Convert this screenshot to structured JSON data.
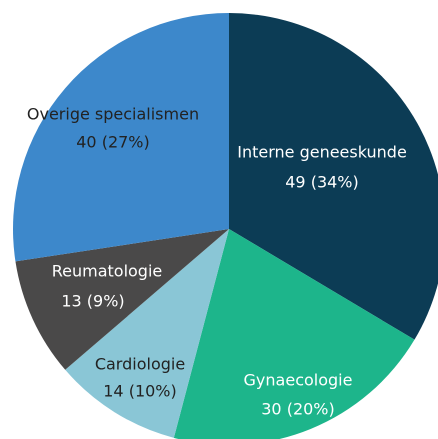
{
  "chart_data": {
    "type": "pie",
    "categories": [
      "Interne geneeskunde",
      "Gynaecologie",
      "Cardiologie",
      "Reumatologie",
      "Overige specialismen"
    ],
    "values": [
      49,
      30,
      14,
      13,
      40
    ],
    "value_labels": [
      "49 (34%)",
      "30 (20%)",
      "14 (10%)",
      "13 (9%)",
      "40 (27%)"
    ],
    "colors": [
      "#0c3c55",
      "#1db58b",
      "#8ac6d6",
      "#4a4949",
      "#3d88cb"
    ]
  }
}
